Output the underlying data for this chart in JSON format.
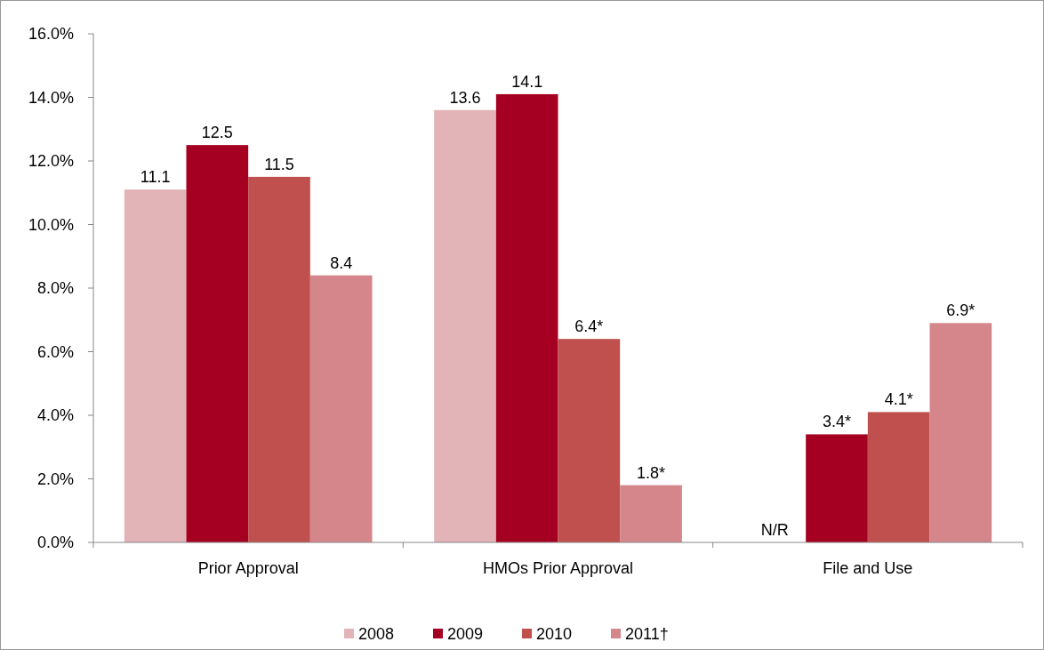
{
  "chart_data": {
    "type": "bar",
    "categories": [
      "Prior Approval",
      "HMOs Prior Approval",
      "File and Use"
    ],
    "series": [
      {
        "name": "2008",
        "color": "#e2b3b7",
        "values": [
          11.1,
          13.6,
          null
        ],
        "value_labels": [
          "11.1",
          "13.6",
          "N/R"
        ]
      },
      {
        "name": "2009",
        "color": "#a50021",
        "values": [
          12.5,
          14.1,
          3.4
        ],
        "value_labels": [
          "12.5",
          "14.1",
          "3.4*"
        ]
      },
      {
        "name": "2010",
        "color": "#c0504d",
        "values": [
          11.5,
          6.4,
          4.1
        ],
        "value_labels": [
          "11.5",
          "6.4*",
          "4.1*"
        ]
      },
      {
        "name": "2011†",
        "color": "#d4868a",
        "values": [
          8.4,
          1.8,
          6.9
        ],
        "value_labels": [
          "8.4",
          "1.8*",
          "6.9*"
        ]
      }
    ],
    "ylim": [
      0,
      16
    ],
    "yticks": [
      {
        "value": 0,
        "label": "0.0%"
      },
      {
        "value": 2,
        "label": "2.0%"
      },
      {
        "value": 4,
        "label": "4.0%"
      },
      {
        "value": 6,
        "label": "6.0%"
      },
      {
        "value": 8,
        "label": "8.0%"
      },
      {
        "value": 10,
        "label": "10.0%"
      },
      {
        "value": 12,
        "label": "12.0%"
      },
      {
        "value": 14,
        "label": "14.0%"
      },
      {
        "value": 16,
        "label": "16.0%"
      }
    ],
    "grid": false,
    "legend": "bottom"
  }
}
